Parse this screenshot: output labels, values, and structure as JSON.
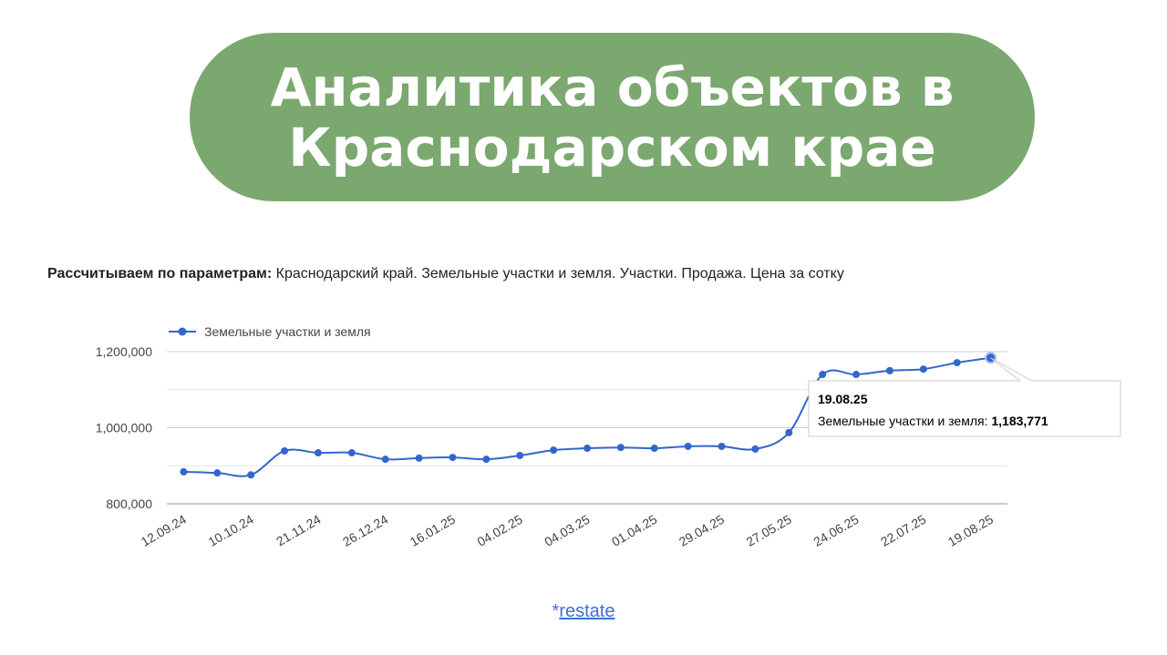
{
  "heading": "Аналитика объектов в Краснодарском крае",
  "chart_data": {
    "type": "line",
    "subtitle_bold": "Рассчитываем по параметрам:",
    "subtitle": "Краснодарский край. Земельные участки и земля. Участки. Продажа. Цена за сотку",
    "categories": [
      "12.09.24",
      null,
      "10.10.24",
      null,
      "21.11.24",
      null,
      "26.12.24",
      null,
      "16.01.25",
      null,
      "04.02.25",
      null,
      "04.03.25",
      null,
      "01.04.25",
      null,
      "29.04.25",
      null,
      "27.05.25",
      null,
      "24.06.25",
      null,
      "22.07.25",
      null,
      "19.08.25"
    ],
    "series": [
      {
        "name": "Земельные участки и земля",
        "color": "#3366cc",
        "values": [
          884000,
          881000,
          876000,
          939000,
          934000,
          934000,
          917000,
          920000,
          922000,
          917000,
          927000,
          941000,
          946000,
          948000,
          946000,
          951000,
          951000,
          944000,
          987000,
          1140000,
          1140000,
          1150000,
          1154000,
          1171000,
          1183771
        ]
      }
    ],
    "ylim": [
      800000,
      1220000
    ],
    "yticks": [
      {
        "value": 800000,
        "label": "800,000"
      },
      {
        "value": 1000000,
        "label": "1,000,000"
      },
      {
        "value": 1200000,
        "label": "1,200,000"
      }
    ],
    "minor_yticks": [
      900000,
      1100000
    ],
    "grid": true,
    "legend": "top-left",
    "tooltip": {
      "label": "Земельные участки и земля:",
      "value_label": "1,183,771"
    }
  },
  "footer": {
    "prefix": "*",
    "link": "restate"
  }
}
